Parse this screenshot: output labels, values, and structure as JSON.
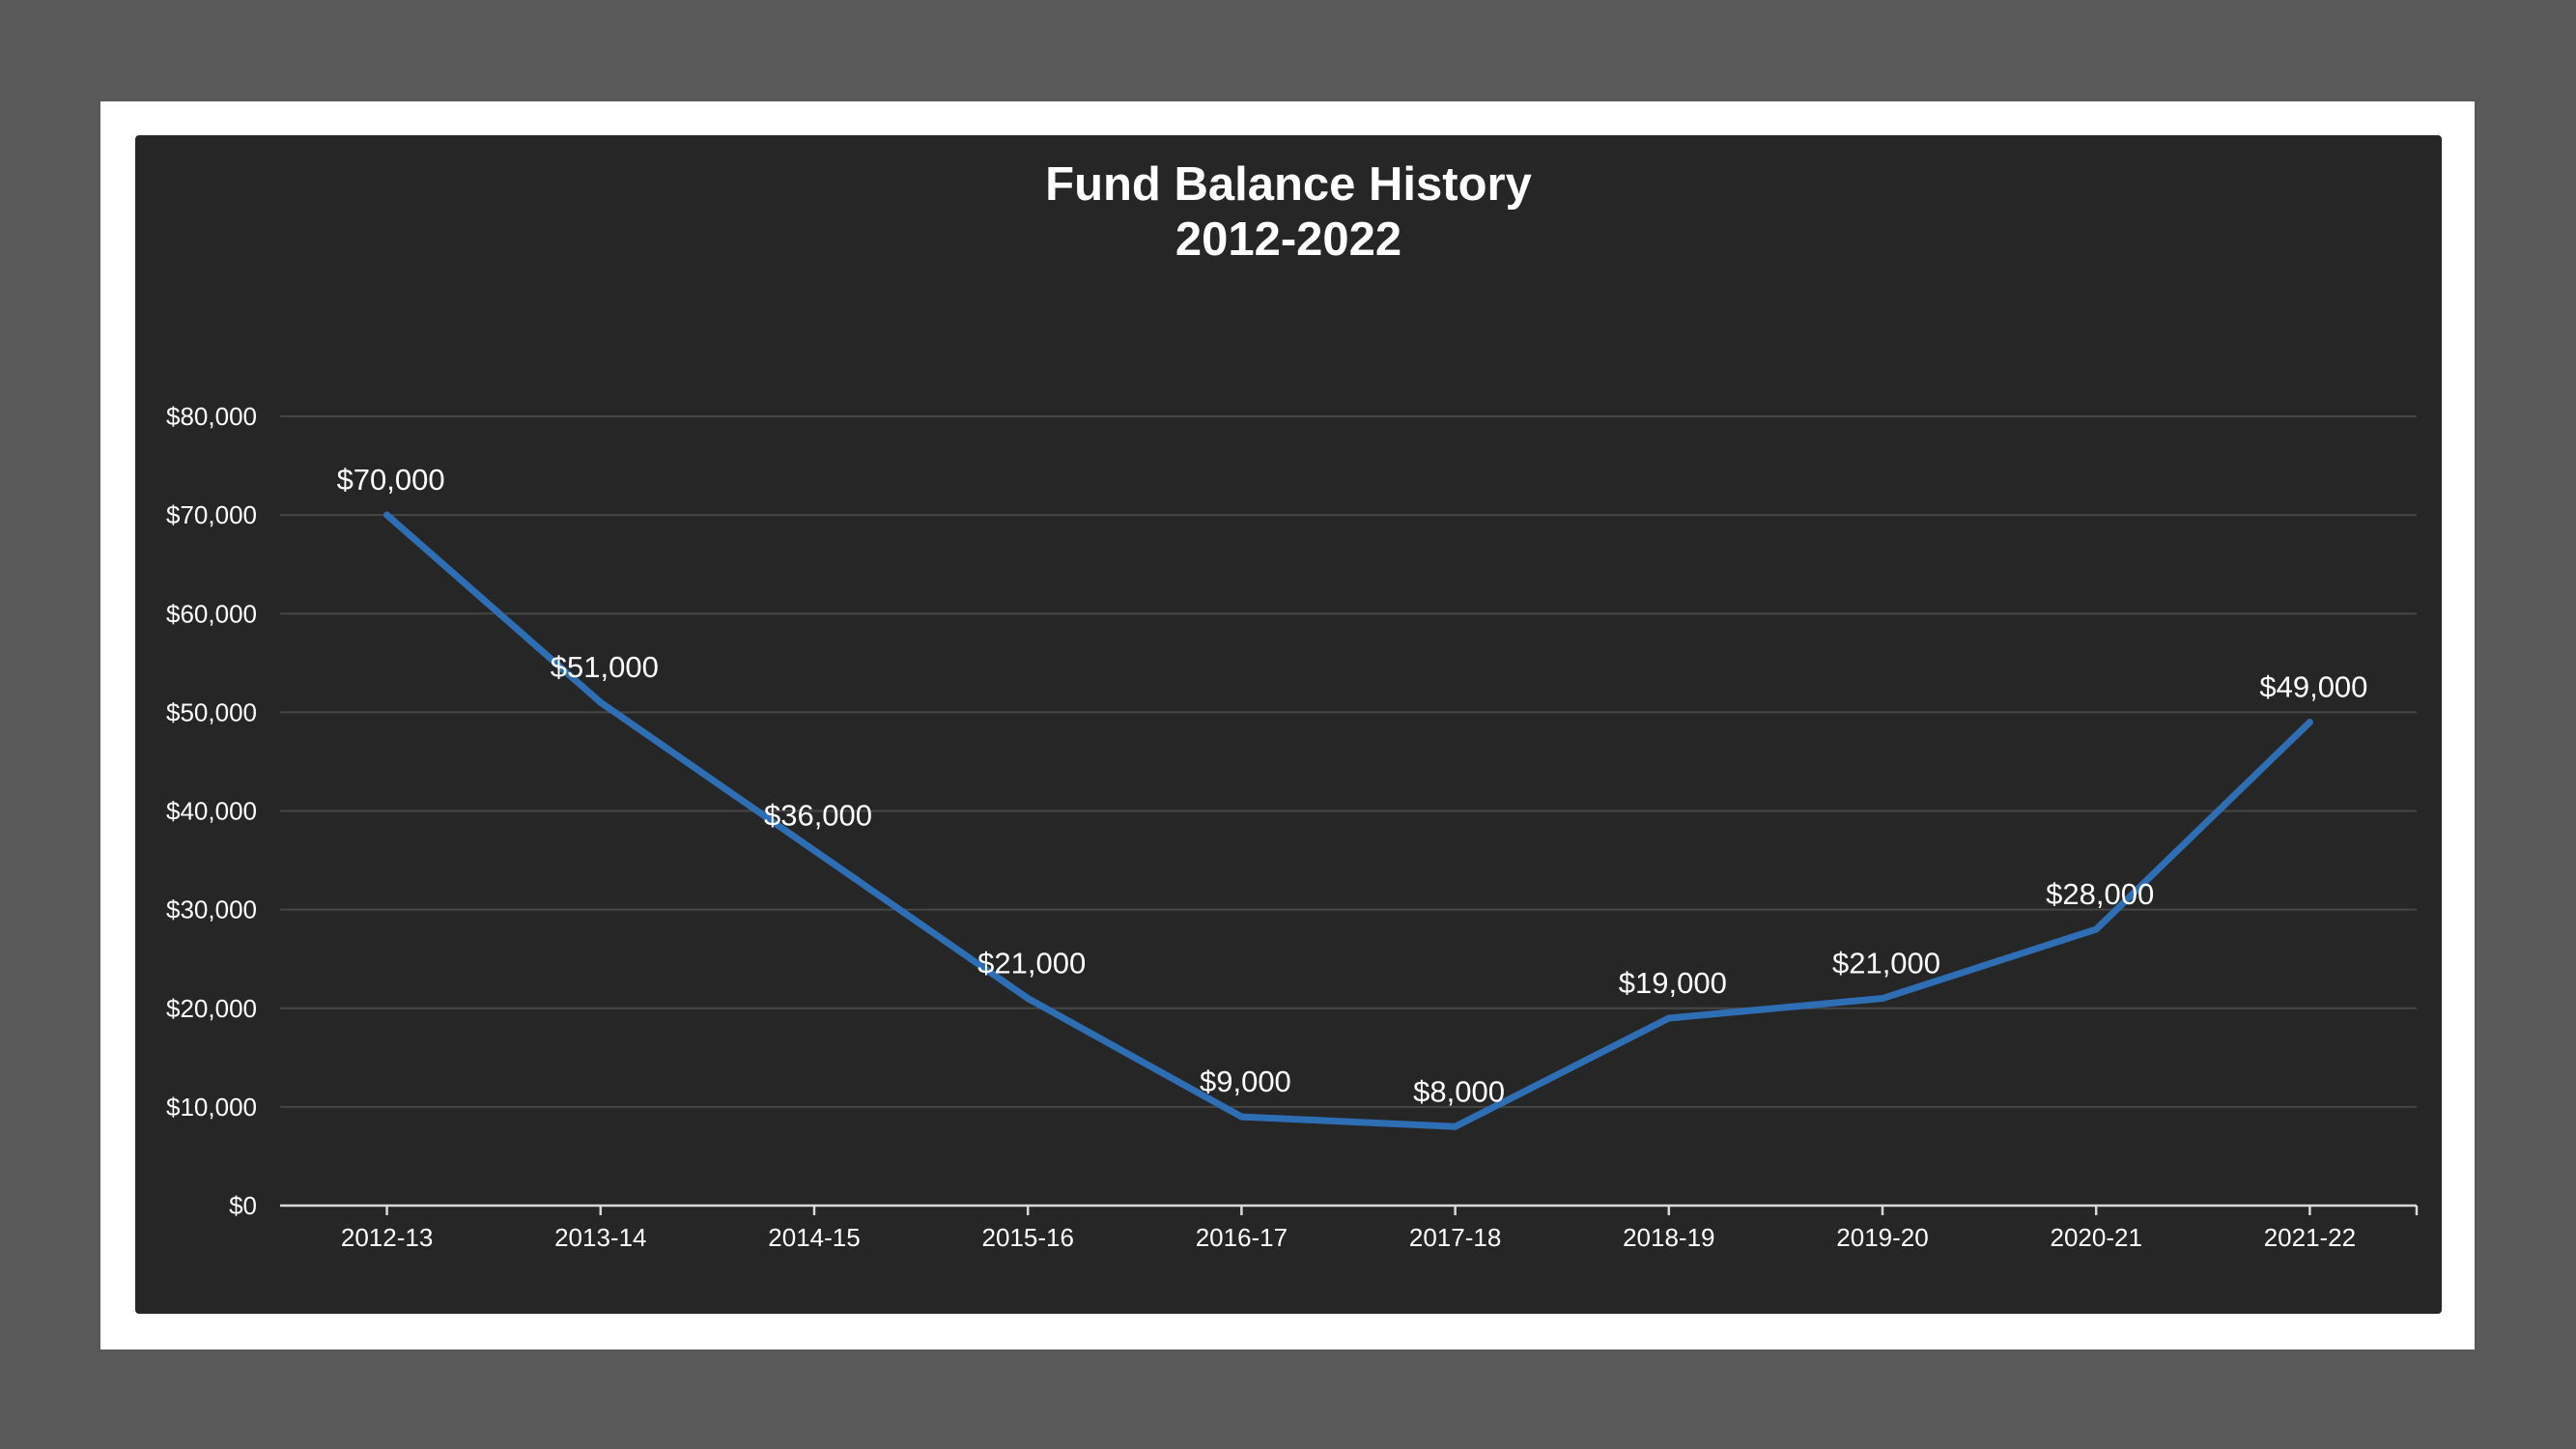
{
  "chart_data": {
    "type": "line",
    "title_lines": [
      "Fund Balance History",
      "2012-2022"
    ],
    "categories": [
      "2012-13",
      "2013-14",
      "2014-15",
      "2015-16",
      "2016-17",
      "2017-18",
      "2018-19",
      "2019-20",
      "2020-21",
      "2021-22"
    ],
    "series": [
      {
        "values": [
          70000,
          51000,
          36000,
          21000,
          9000,
          8000,
          19000,
          21000,
          28000,
          49000
        ],
        "data_labels": [
          "$70,000",
          "$51,000",
          "$36,000",
          "$21,000",
          "$9,000",
          "$8,000",
          "$19,000",
          "$21,000",
          "$28,000",
          "$49,000"
        ]
      }
    ],
    "y_ticks": [
      0,
      10000,
      20000,
      30000,
      40000,
      50000,
      60000,
      70000,
      80000
    ],
    "y_tick_labels": [
      "$0",
      "$10,000",
      "$20,000",
      "$30,000",
      "$40,000",
      "$50,000",
      "$60,000",
      "$70,000",
      "$80,000"
    ],
    "ylim": [
      0,
      80000
    ],
    "grid": true,
    "legend": "none",
    "colors": {
      "line": "#2e6eb5",
      "background": "#262626",
      "gridline": "#464646",
      "axis": "#d9d9d9",
      "frame": "#ffffff",
      "page": "#595959"
    }
  }
}
